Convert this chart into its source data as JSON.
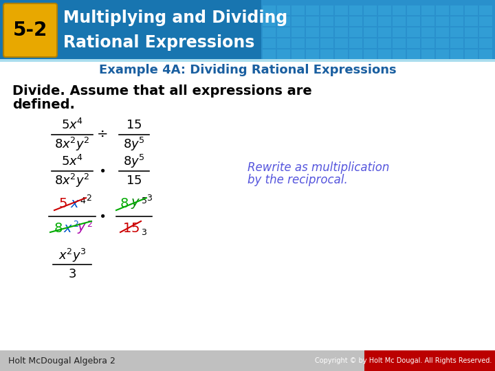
{
  "bg_color": "#ffffff",
  "header_bg_left": "#1a6fa8",
  "header_bg_right": "#2a9fd6",
  "badge_bg": "#e8a800",
  "badge_text": "5-2",
  "header_title_line1": "Multiplying and Dividing",
  "header_title_line2": "Rational Expressions",
  "header_title_color": "#ffffff",
  "example_title": "Example 4A: Dividing Rational Expressions",
  "example_title_color": "#1a5fa0",
  "instruction_line1": "Divide. Assume that all expressions are",
  "instruction_line2": "defined.",
  "instruction_color": "#000000",
  "note_line1": "Rewrite as multiplication",
  "note_line2": "by the reciprocal.",
  "note_color": "#5555dd",
  "footer_left": "Holt McDougal Algebra 2",
  "footer_right": "Copyright © by Holt Mc Dougal. All Rights Reserved.",
  "footer_bg": "#c8c8c8",
  "footer_red_bg": "#cc0000",
  "footer_text_color": "#333333",
  "footer_right_color": "#ffffff"
}
